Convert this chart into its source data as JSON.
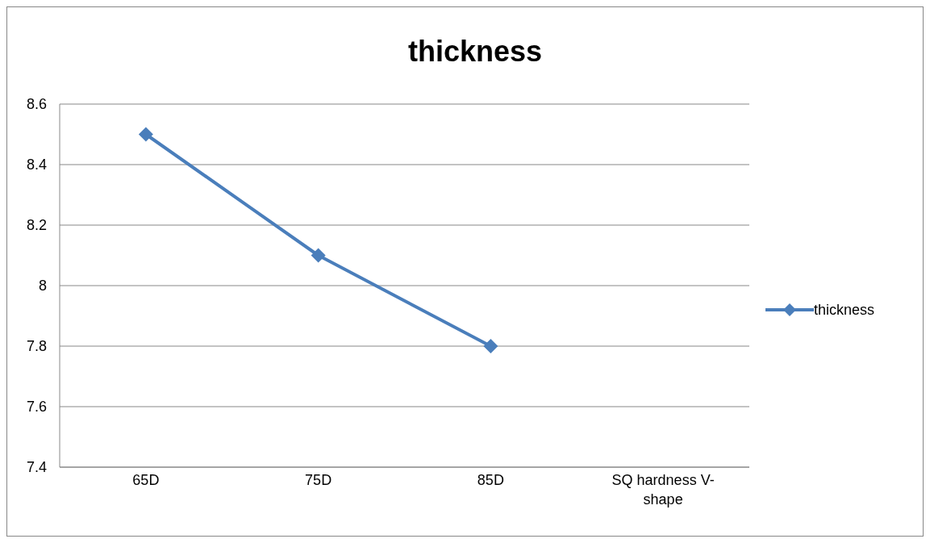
{
  "chart_data": {
    "type": "line",
    "title": "thickness",
    "categories": [
      "65D",
      "75D",
      "85D",
      "SQ hardness V-shape"
    ],
    "series": [
      {
        "name": "thickness",
        "color": "#4a7ebb",
        "values": [
          8.5,
          8.1,
          7.8,
          null
        ]
      }
    ],
    "ylim": [
      7.4,
      8.6
    ],
    "yticks": [
      7.4,
      7.6,
      7.8,
      8,
      8.2,
      8.4,
      8.6
    ],
    "grid": "y",
    "legend": "right",
    "marker": "diamond",
    "line_style": "solid"
  }
}
